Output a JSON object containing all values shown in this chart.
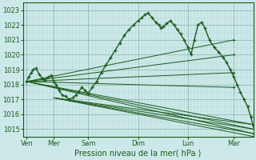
{
  "background_color": "#cce8e8",
  "grid_color_minor": "#b8d8d8",
  "grid_color_major": "#99bbbb",
  "line_color": "#1a5c1a",
  "xlabel": "Pression niveau de la mer( hPa )",
  "ylim": [
    1014.5,
    1023.5
  ],
  "yticks": [
    1015,
    1016,
    1017,
    1018,
    1019,
    1020,
    1021,
    1022,
    1023
  ],
  "xtick_labels": [
    "Ven",
    "Mer",
    "Sam",
    "Dim",
    "Lun",
    "Mar"
  ],
  "xtick_positions": [
    0.08,
    0.67,
    1.42,
    2.5,
    3.58,
    4.58
  ],
  "xlim": [
    0.0,
    5.0
  ],
  "origin_x": 0.08,
  "origin_y": 1018.2,
  "main_series": {
    "x": [
      0.08,
      0.12,
      0.18,
      0.22,
      0.28,
      0.35,
      0.42,
      0.48,
      0.55,
      0.62,
      0.67,
      0.72,
      0.78,
      0.85,
      0.92,
      1.0,
      1.08,
      1.15,
      1.2,
      1.28,
      1.35,
      1.42,
      1.5,
      1.6,
      1.7,
      1.8,
      1.9,
      2.0,
      2.1,
      2.2,
      2.3,
      2.4,
      2.5,
      2.58,
      2.65,
      2.72,
      2.8,
      2.88,
      2.95,
      3.0,
      3.05,
      3.12,
      3.2,
      3.28,
      3.35,
      3.42,
      3.5,
      3.58,
      3.65,
      3.72,
      3.8,
      3.88,
      3.95,
      4.05,
      4.15,
      4.25,
      4.35,
      4.42,
      4.5,
      4.58,
      4.65,
      4.72,
      4.8,
      4.88,
      4.95,
      5.0
    ],
    "y": [
      1018.2,
      1018.5,
      1018.8,
      1019.0,
      1019.1,
      1018.7,
      1018.4,
      1018.3,
      1018.5,
      1018.6,
      1018.2,
      1018.0,
      1017.6,
      1017.3,
      1017.2,
      1017.0,
      1017.1,
      1017.3,
      1017.5,
      1017.8,
      1017.6,
      1017.4,
      1017.8,
      1018.2,
      1018.8,
      1019.3,
      1019.8,
      1020.3,
      1020.8,
      1021.3,
      1021.7,
      1022.0,
      1022.3,
      1022.5,
      1022.7,
      1022.8,
      1022.5,
      1022.2,
      1022.0,
      1021.8,
      1021.9,
      1022.1,
      1022.3,
      1022.0,
      1021.7,
      1021.4,
      1021.0,
      1020.5,
      1020.0,
      1021.0,
      1022.0,
      1022.2,
      1021.8,
      1021.0,
      1020.5,
      1020.2,
      1019.8,
      1019.5,
      1019.0,
      1018.5,
      1018.0,
      1017.5,
      1017.0,
      1016.5,
      1015.8,
      1015.2
    ]
  },
  "fan_lines": [
    {
      "x0": 0.08,
      "y0": 1018.2,
      "x1": 4.58,
      "y1": 1021.0,
      "end_marker": true
    },
    {
      "x0": 0.08,
      "y0": 1018.2,
      "x1": 4.58,
      "y1": 1020.0,
      "end_marker": true
    },
    {
      "x0": 0.08,
      "y0": 1018.2,
      "x1": 4.58,
      "y1": 1018.8,
      "end_marker": true
    },
    {
      "x0": 0.08,
      "y0": 1018.2,
      "x1": 4.58,
      "y1": 1017.8,
      "end_marker": true
    },
    {
      "x0": 0.08,
      "y0": 1018.2,
      "x1": 5.0,
      "y1": 1015.3,
      "end_marker": true
    },
    {
      "x0": 0.08,
      "y0": 1018.2,
      "x1": 5.0,
      "y1": 1015.0,
      "end_marker": true
    },
    {
      "x0": 0.08,
      "y0": 1018.2,
      "x1": 5.0,
      "y1": 1014.7,
      "end_marker": true
    }
  ],
  "fan_lines_lower": [
    {
      "x0": 0.08,
      "y0": 1017.1,
      "x1": 5.0,
      "y1": 1015.2
    },
    {
      "x0": 0.08,
      "y0": 1017.0,
      "x1": 5.0,
      "y1": 1015.0
    },
    {
      "x0": 0.08,
      "y0": 1016.8,
      "x1": 5.0,
      "y1": 1014.7
    },
    {
      "x0": 0.08,
      "y0": 1016.5,
      "x1": 5.0,
      "y1": 1014.5
    }
  ]
}
